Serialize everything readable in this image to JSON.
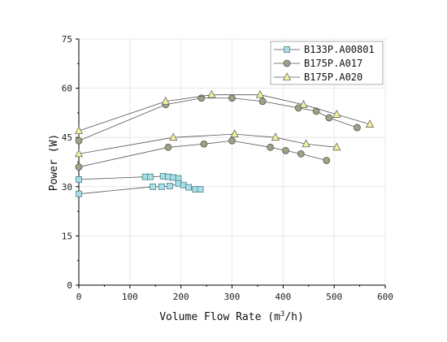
{
  "chart_data": {
    "type": "scatter",
    "xlabel_main": "Volume Flow Rate (m",
    "xlabel_sup": "3",
    "xlabel_tail": "/h)",
    "ylabel": "Power (W)",
    "xlim": [
      0,
      600
    ],
    "ylim": [
      0,
      75
    ],
    "x_ticks": [
      "0",
      "100",
      "200",
      "300",
      "400",
      "500",
      "600"
    ],
    "y_ticks": [
      "0",
      "15",
      "30",
      "45",
      "60",
      "75"
    ],
    "grid": true,
    "legend_position": "top-right",
    "series": [
      {
        "name": "B133P.A00801",
        "marker": "square",
        "fill": "#a9dfe6",
        "stroke": "#4a7f8a",
        "curves": [
          {
            "x": [
              0,
              130,
              140,
              165,
              175,
              185,
              195
            ],
            "y": [
              32.2,
              33.0,
              33.0,
              33.2,
              33.0,
              32.8,
              32.5
            ]
          },
          {
            "x": [
              0,
              145,
              162,
              178,
              195,
              205,
              215,
              228,
              238
            ],
            "y": [
              27.8,
              30.0,
              30.0,
              30.2,
              31.0,
              30.5,
              29.8,
              29.2,
              29.2
            ]
          }
        ]
      },
      {
        "name": "B175P.A017",
        "marker": "circle",
        "fill": "#9fa383",
        "stroke": "#555",
        "curves": [
          {
            "x": [
              0,
              170,
              240,
              300,
              360,
              430,
              465,
              490,
              545
            ],
            "y": [
              44.0,
              55.0,
              57.0,
              57.0,
              56.0,
              54.0,
              53.0,
              51.0,
              48.0
            ]
          },
          {
            "x": [
              0,
              175,
              245,
              300,
              375,
              405,
              435,
              485
            ],
            "y": [
              36.0,
              42.0,
              43.0,
              44.0,
              42.0,
              41.0,
              40.0,
              38.0
            ]
          }
        ]
      },
      {
        "name": "B175P.A020",
        "marker": "triangle",
        "fill": "#f5f39a",
        "stroke": "#666",
        "curves": [
          {
            "x": [
              0,
              170,
              260,
              355,
              440,
              505,
              570
            ],
            "y": [
              47.0,
              56.0,
              58.0,
              58.0,
              55.0,
              52.0,
              49.0
            ]
          },
          {
            "x": [
              0,
              185,
              305,
              385,
              445,
              505
            ],
            "y": [
              40.0,
              45.0,
              46.0,
              45.0,
              43.0,
              42.0
            ]
          }
        ]
      }
    ]
  }
}
